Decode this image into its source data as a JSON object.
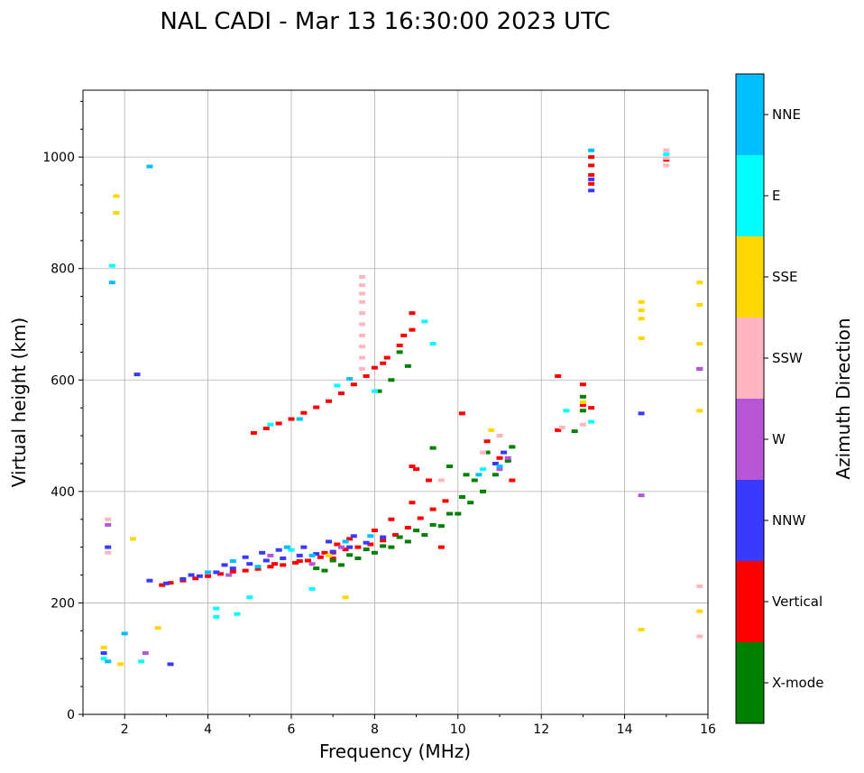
{
  "chart_data": {
    "type": "scatter",
    "title": "NAL CADI - Mar 13 16:30:00 2023 UTC",
    "xlabel": "Frequency (MHz)",
    "ylabel": "Virtual height (km)",
    "xlim": [
      1,
      16
    ],
    "ylim": [
      0,
      1120
    ],
    "xticks": [
      2,
      4,
      6,
      8,
      10,
      12,
      14,
      16
    ],
    "yticks": [
      0,
      200,
      400,
      600,
      800,
      1000
    ],
    "xtick_labels": [
      "2",
      "4",
      "6",
      "8",
      "10",
      "12",
      "14",
      "16"
    ],
    "ytick_labels": [
      "0",
      "200",
      "400",
      "600",
      "800",
      "1000"
    ],
    "grid": true,
    "colorbar": {
      "label": "Azimuth Direction",
      "position": "right",
      "categories": [
        {
          "name": "X-mode",
          "color": "#008000"
        },
        {
          "name": "Vertical",
          "color": "#ff0000"
        },
        {
          "name": "NNW",
          "color": "#3a3aff"
        },
        {
          "name": "W",
          "color": "#b656d6"
        },
        {
          "name": "SSW",
          "color": "#ffb6c1"
        },
        {
          "name": "SSE",
          "color": "#ffd700"
        },
        {
          "name": "E",
          "color": "#00ffff"
        },
        {
          "name": "NNE",
          "color": "#00bfff"
        }
      ]
    },
    "series": [
      {
        "name": "Vertical",
        "color": "#ff0000",
        "points": [
          [
            2.9,
            232
          ],
          [
            3.1,
            236
          ],
          [
            3.4,
            240
          ],
          [
            3.7,
            244
          ],
          [
            4.0,
            248
          ],
          [
            4.3,
            252
          ],
          [
            4.6,
            256
          ],
          [
            4.9,
            258
          ],
          [
            5.2,
            261
          ],
          [
            5.5,
            265
          ],
          [
            5.8,
            268
          ],
          [
            6.1,
            272
          ],
          [
            6.4,
            276
          ],
          [
            6.7,
            282
          ],
          [
            7.0,
            290
          ],
          [
            7.3,
            296
          ],
          [
            7.6,
            300
          ],
          [
            7.9,
            305
          ],
          [
            8.2,
            312
          ],
          [
            8.5,
            322
          ],
          [
            8.8,
            335
          ],
          [
            9.1,
            352
          ],
          [
            9.4,
            368
          ],
          [
            9.7,
            383
          ],
          [
            6.8,
            290
          ],
          [
            7.1,
            305
          ],
          [
            7.4,
            315
          ],
          [
            8.0,
            330
          ],
          [
            8.4,
            350
          ],
          [
            8.9,
            380
          ],
          [
            8.9,
            445
          ],
          [
            5.1,
            505
          ],
          [
            5.4,
            513
          ],
          [
            5.7,
            522
          ],
          [
            6.0,
            530
          ],
          [
            6.3,
            541
          ],
          [
            6.6,
            551
          ],
          [
            6.9,
            562
          ],
          [
            7.2,
            576
          ],
          [
            7.5,
            592
          ],
          [
            7.8,
            607
          ],
          [
            8.0,
            622
          ],
          [
            8.3,
            640
          ],
          [
            8.6,
            662
          ],
          [
            8.9,
            690
          ],
          [
            8.9,
            720
          ],
          [
            8.7,
            680
          ],
          [
            8.2,
            630
          ],
          [
            11.3,
            420
          ],
          [
            11.0,
            460
          ],
          [
            10.7,
            490
          ],
          [
            10.1,
            540
          ],
          [
            12.4,
            510
          ],
          [
            12.4,
            607
          ],
          [
            13.0,
            592
          ],
          [
            13.0,
            555
          ],
          [
            13.2,
            550
          ],
          [
            13.2,
            1000
          ],
          [
            13.2,
            985
          ],
          [
            13.2,
            968
          ],
          [
            13.2,
            952
          ],
          [
            15.0,
            995
          ],
          [
            5.6,
            270
          ],
          [
            6.2,
            275
          ],
          [
            7.0,
            280
          ],
          [
            9.6,
            300
          ],
          [
            9.3,
            420
          ],
          [
            9.0,
            440
          ]
        ]
      },
      {
        "name": "X-mode",
        "color": "#008000",
        "points": [
          [
            6.8,
            258
          ],
          [
            7.2,
            268
          ],
          [
            7.6,
            280
          ],
          [
            8.0,
            290
          ],
          [
            8.4,
            300
          ],
          [
            8.8,
            310
          ],
          [
            9.2,
            322
          ],
          [
            9.6,
            338
          ],
          [
            10.0,
            360
          ],
          [
            10.3,
            380
          ],
          [
            10.6,
            400
          ],
          [
            10.9,
            430
          ],
          [
            11.2,
            455
          ],
          [
            11.3,
            480
          ],
          [
            11.0,
            500
          ],
          [
            10.7,
            470
          ],
          [
            10.4,
            420
          ],
          [
            10.1,
            390
          ],
          [
            9.8,
            360
          ],
          [
            9.4,
            340
          ],
          [
            9.0,
            330
          ],
          [
            8.6,
            318
          ],
          [
            8.2,
            302
          ],
          [
            7.8,
            296
          ],
          [
            7.4,
            286
          ],
          [
            7.0,
            276
          ],
          [
            6.6,
            262
          ],
          [
            12.8,
            508
          ],
          [
            13.0,
            545
          ],
          [
            13.0,
            570
          ],
          [
            8.4,
            600
          ],
          [
            8.8,
            625
          ],
          [
            8.6,
            650
          ],
          [
            8.1,
            580
          ],
          [
            9.4,
            478
          ],
          [
            9.8,
            445
          ],
          [
            10.2,
            430
          ]
        ]
      },
      {
        "name": "NNW",
        "color": "#3a3aff",
        "points": [
          [
            3.0,
            235
          ],
          [
            3.4,
            243
          ],
          [
            3.8,
            248
          ],
          [
            4.2,
            255
          ],
          [
            4.6,
            262
          ],
          [
            5.0,
            270
          ],
          [
            5.4,
            276
          ],
          [
            5.8,
            280
          ],
          [
            6.2,
            285
          ],
          [
            6.6,
            288
          ],
          [
            7.0,
            292
          ],
          [
            7.4,
            300
          ],
          [
            7.8,
            308
          ],
          [
            8.2,
            318
          ],
          [
            4.4,
            268
          ],
          [
            4.9,
            282
          ],
          [
            5.3,
            290
          ],
          [
            5.7,
            295
          ],
          [
            6.3,
            300
          ],
          [
            6.9,
            310
          ],
          [
            7.5,
            320
          ],
          [
            3.6,
            250
          ],
          [
            2.6,
            240
          ],
          [
            2.3,
            610
          ],
          [
            3.1,
            90
          ],
          [
            13.2,
            940
          ],
          [
            13.2,
            960
          ],
          [
            14.4,
            540
          ],
          [
            15.8,
            620
          ],
          [
            1.6,
            300
          ],
          [
            1.5,
            110
          ],
          [
            10.9,
            450
          ],
          [
            11.1,
            470
          ]
        ]
      },
      {
        "name": "W",
        "color": "#b656d6",
        "points": [
          [
            4.5,
            250
          ],
          [
            5.5,
            285
          ],
          [
            6.5,
            270
          ],
          [
            7.2,
            300
          ],
          [
            11.0,
            440
          ],
          [
            11.2,
            460
          ],
          [
            14.4,
            393
          ],
          [
            15.8,
            620
          ],
          [
            1.6,
            340
          ],
          [
            2.5,
            110
          ]
        ]
      },
      {
        "name": "SSW",
        "color": "#ffb6c1",
        "points": [
          [
            7.7,
            785
          ],
          [
            7.7,
            770
          ],
          [
            7.7,
            755
          ],
          [
            7.7,
            740
          ],
          [
            7.7,
            720
          ],
          [
            7.7,
            700
          ],
          [
            7.7,
            680
          ],
          [
            7.7,
            660
          ],
          [
            7.7,
            640
          ],
          [
            7.7,
            620
          ],
          [
            15.0,
            1012
          ],
          [
            15.0,
            998
          ],
          [
            15.0,
            985
          ],
          [
            15.8,
            230
          ],
          [
            15.8,
            140
          ],
          [
            10.6,
            470
          ],
          [
            11.0,
            500
          ],
          [
            9.6,
            420
          ],
          [
            1.6,
            350
          ],
          [
            1.6,
            290
          ],
          [
            12.5,
            515
          ],
          [
            13.0,
            520
          ]
        ]
      },
      {
        "name": "SSE",
        "color": "#ffd700",
        "points": [
          [
            1.5,
            120
          ],
          [
            2.2,
            315
          ],
          [
            2.8,
            155
          ],
          [
            1.9,
            90
          ],
          [
            1.8,
            930
          ],
          [
            1.8,
            900
          ],
          [
            7.3,
            210
          ],
          [
            14.4,
            740
          ],
          [
            14.4,
            725
          ],
          [
            14.4,
            710
          ],
          [
            14.4,
            675
          ],
          [
            14.4,
            152
          ],
          [
            15.8,
            775
          ],
          [
            15.8,
            735
          ],
          [
            15.8,
            665
          ],
          [
            15.8,
            545
          ],
          [
            15.8,
            185
          ],
          [
            10.8,
            510
          ],
          [
            6.9,
            285
          ],
          [
            13.0,
            560
          ]
        ]
      },
      {
        "name": "E",
        "color": "#00ffff",
        "points": [
          [
            4.2,
            190
          ],
          [
            4.2,
            175
          ],
          [
            4.7,
            180
          ],
          [
            5.0,
            210
          ],
          [
            6.5,
            225
          ],
          [
            1.7,
            805
          ],
          [
            9.2,
            705
          ],
          [
            9.4,
            665
          ],
          [
            1.5,
            100
          ],
          [
            2.4,
            95
          ],
          [
            6.0,
            295
          ],
          [
            8.0,
            580
          ],
          [
            10.6,
            440
          ],
          [
            12.6,
            545
          ],
          [
            13.2,
            525
          ],
          [
            15.0,
            1005
          ],
          [
            7.1,
            590
          ],
          [
            5.5,
            520
          ]
        ]
      },
      {
        "name": "NNE",
        "color": "#00bfff",
        "points": [
          [
            4.0,
            255
          ],
          [
            4.6,
            275
          ],
          [
            5.2,
            265
          ],
          [
            5.9,
            300
          ],
          [
            6.5,
            285
          ],
          [
            7.3,
            310
          ],
          [
            7.9,
            320
          ],
          [
            2.6,
            983
          ],
          [
            1.7,
            775
          ],
          [
            2.0,
            145
          ],
          [
            1.6,
            95
          ],
          [
            13.2,
            1012
          ],
          [
            10.5,
            430
          ],
          [
            11.0,
            445
          ],
          [
            6.2,
            530
          ],
          [
            7.4,
            602
          ]
        ]
      }
    ]
  }
}
